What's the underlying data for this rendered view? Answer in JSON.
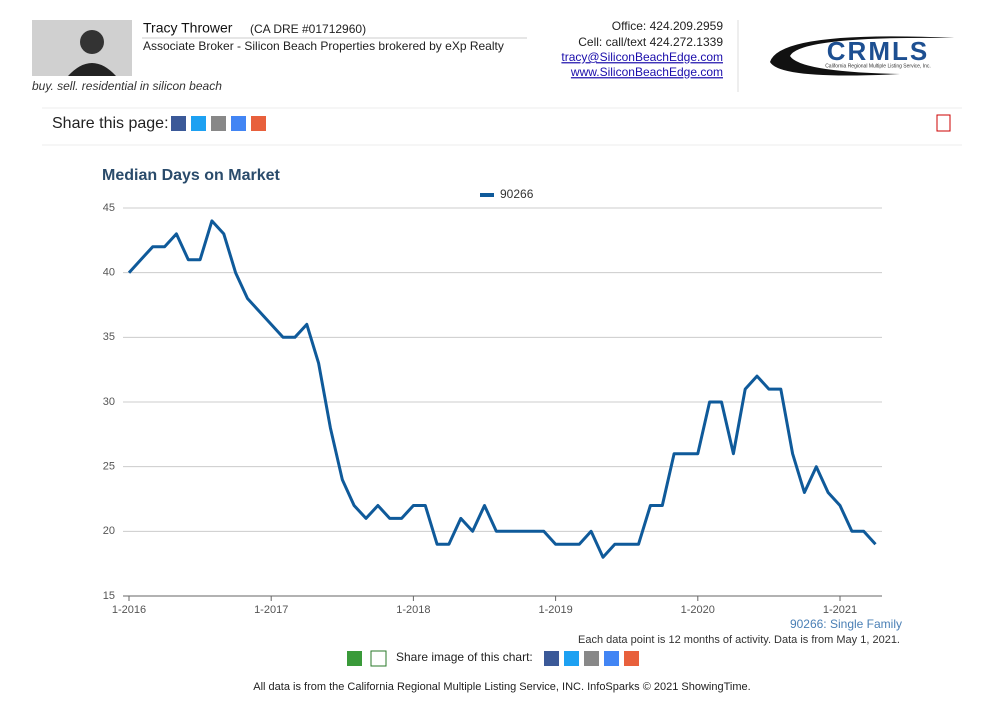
{
  "header": {
    "name": "Tracy Thrower",
    "license": "(CA DRE #01712960)",
    "role": "Associate Broker - Silicon Beach Properties brokered by eXp Realty",
    "tagline": "buy. sell. residential in silicon beach",
    "office": "Office: 424.209.2959",
    "cell": "Cell: call/text 424.272.1339",
    "email": "tracy@SiliconBeachEdge.com",
    "website": "www.SiliconBeachEdge.com",
    "logo": "CRMLS",
    "logo_sub": "California Regional Multiple Listing Service, Inc."
  },
  "share_page": "Share this page:",
  "chart_data": {
    "type": "line",
    "title": "Median Days on Market",
    "categories": [
      "1-2016",
      null,
      null,
      null,
      null,
      null,
      null,
      null,
      null,
      null,
      null,
      null,
      "1-2017",
      null,
      null,
      null,
      null,
      null,
      null,
      null,
      null,
      null,
      null,
      null,
      "1-2018",
      null,
      null,
      null,
      null,
      null,
      null,
      null,
      null,
      null,
      null,
      null,
      "1-2019",
      null,
      null,
      null,
      null,
      null,
      null,
      null,
      null,
      null,
      null,
      null,
      "1-2020",
      null,
      null,
      null,
      null,
      null,
      null,
      null,
      null,
      null,
      null,
      null,
      "1-2021",
      null,
      null,
      null
    ],
    "series": [
      {
        "name": "90266",
        "color": "#0f5a9a",
        "values": [
          40,
          41,
          42,
          42,
          43,
          41,
          41,
          44,
          43,
          40,
          38,
          37,
          36,
          35,
          35,
          36,
          33,
          28,
          24,
          22,
          21,
          22,
          21,
          21,
          22,
          22,
          19,
          19,
          21,
          20,
          22,
          20,
          20,
          20,
          20,
          20,
          19,
          19,
          19,
          20,
          18,
          19,
          19,
          19,
          22,
          22,
          26,
          26,
          26,
          30,
          30,
          26,
          31,
          32,
          31,
          31,
          26,
          23,
          25,
          23,
          22,
          20,
          20,
          19
        ]
      }
    ],
    "ylim": [
      15,
      45
    ],
    "yticks": [
      15,
      20,
      25,
      30,
      35,
      40,
      45
    ],
    "grid": true,
    "legend": "top",
    "series_note": "90266: Single Family",
    "note": "Each data point is 12 months of activity. Data is from May 1, 2021."
  },
  "share_image": "Share image of this chart:",
  "footer": "All data is from the California Regional Multiple Listing Service, INC. InfoSparks © 2021 ShowingTime."
}
